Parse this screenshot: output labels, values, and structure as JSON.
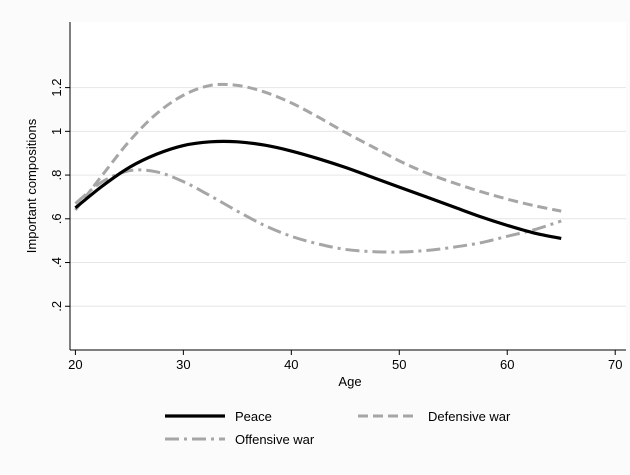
{
  "chart_data": {
    "type": "line",
    "xlabel": "Age",
    "ylabel": "Important compositions",
    "xlim": [
      19.5,
      71
    ],
    "ylim": [
      0,
      1.5
    ],
    "xticks": [
      20,
      30,
      40,
      50,
      60,
      70
    ],
    "xtick_labels": [
      "20",
      "30",
      "40",
      "50",
      "60",
      "70"
    ],
    "yticks": [
      0.2,
      0.4,
      0.6,
      0.8,
      1.0,
      1.2
    ],
    "ytick_labels": [
      ".2",
      ".4",
      ".6",
      ".8",
      "1",
      "1.2"
    ],
    "grid": "horizontal",
    "legend_position": "bottom",
    "series": [
      {
        "name": "Peace",
        "color": "#000000",
        "dash": "solid",
        "x": [
          20,
          22.5,
          25,
          27.5,
          30,
          32.5,
          35,
          37.5,
          40,
          42.5,
          45,
          47.5,
          50,
          52.5,
          55,
          57.5,
          60,
          62.5,
          65
        ],
        "y": [
          0.65,
          0.75,
          0.835,
          0.895,
          0.935,
          0.952,
          0.952,
          0.937,
          0.91,
          0.875,
          0.835,
          0.79,
          0.745,
          0.7,
          0.655,
          0.61,
          0.57,
          0.535,
          0.51
        ]
      },
      {
        "name": "Defensive war",
        "color": "#a6a6a6",
        "dash": "dashed",
        "x": [
          20,
          22.5,
          25,
          27.5,
          30,
          32.5,
          35,
          37.5,
          40,
          42.5,
          45,
          47.5,
          50,
          52.5,
          55,
          57.5,
          60,
          62.5,
          65
        ],
        "y": [
          0.64,
          0.8,
          0.955,
          1.08,
          1.165,
          1.21,
          1.21,
          1.18,
          1.13,
          1.065,
          0.995,
          0.93,
          0.865,
          0.81,
          0.765,
          0.725,
          0.69,
          0.66,
          0.635
        ]
      },
      {
        "name": "Offensive war",
        "color": "#a6a6a6",
        "dash": "dashdot",
        "x": [
          20,
          22.5,
          25,
          27.5,
          30,
          32.5,
          35,
          37.5,
          40,
          42.5,
          45,
          47.5,
          50,
          52.5,
          55,
          57.5,
          60,
          62.5,
          65
        ],
        "y": [
          0.67,
          0.77,
          0.82,
          0.815,
          0.77,
          0.705,
          0.635,
          0.57,
          0.52,
          0.485,
          0.46,
          0.45,
          0.448,
          0.455,
          0.47,
          0.49,
          0.52,
          0.55,
          0.59
        ]
      }
    ]
  }
}
